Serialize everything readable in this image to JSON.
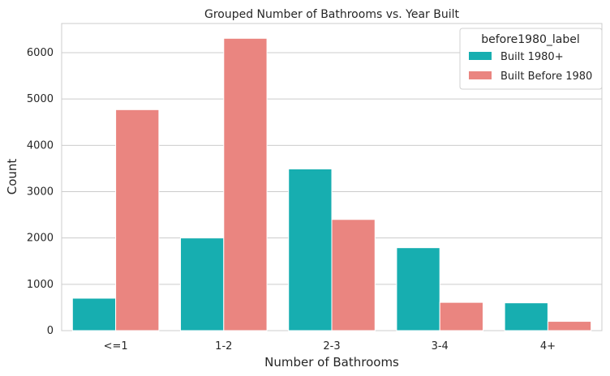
{
  "chart_data": {
    "type": "bar",
    "title": "Grouped Number of Bathrooms vs. Year Built",
    "xlabel": "Number of Bathrooms",
    "ylabel": "Count",
    "categories": [
      "<=1",
      "1-2",
      "2-3",
      "3-4",
      "4+"
    ],
    "series": [
      {
        "name": "Built 1980+",
        "color": "#17aeb0",
        "values": [
          700,
          2000,
          3490,
          1790,
          600
        ]
      },
      {
        "name": "Built Before 1980",
        "color": "#ea8580",
        "values": [
          4770,
          6310,
          2400,
          610,
          200
        ]
      }
    ],
    "ylim": [
      0,
      6630
    ],
    "yticks": [
      0,
      1000,
      2000,
      3000,
      4000,
      5000,
      6000
    ],
    "grid": "horizontal",
    "legend": {
      "title": "before1980_label",
      "position": "top-right"
    }
  }
}
